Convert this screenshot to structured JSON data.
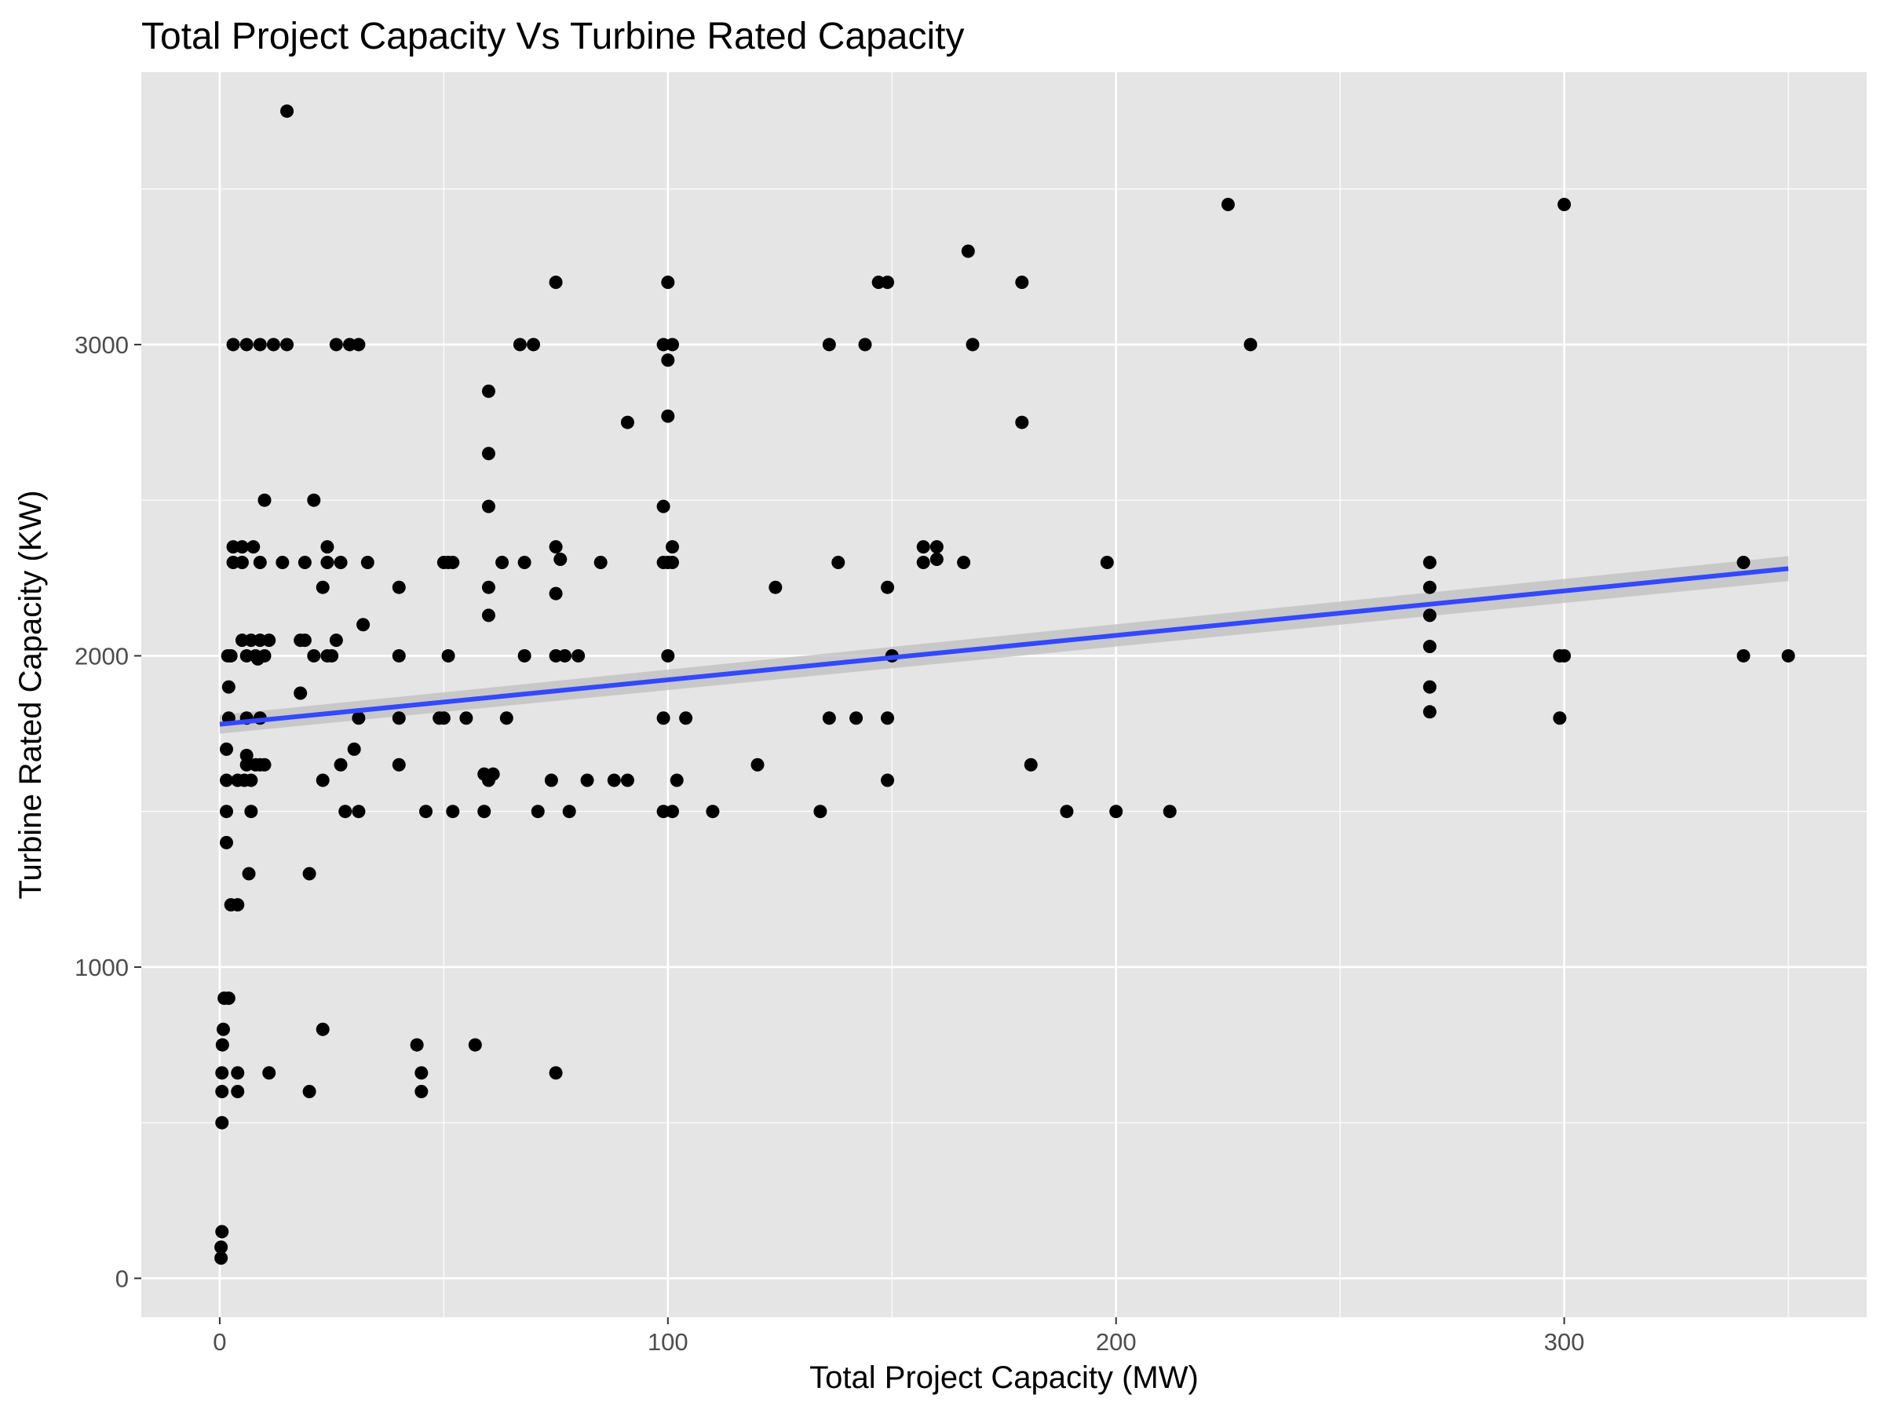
{
  "chart_data": {
    "type": "scatter",
    "title": "Total Project Capacity Vs Turbine Rated Capacity",
    "xlabel": "Total Project Capacity (MW)",
    "ylabel": "Turbine Rated Capacity (KW)",
    "xlim": [
      -17.5,
      367.5
    ],
    "ylim": [
      -125,
      3875
    ],
    "x_ticks": [
      0,
      100,
      200,
      300
    ],
    "y_ticks": [
      0,
      1000,
      2000,
      3000
    ],
    "x_tick_labels": [
      "0",
      "100",
      "200",
      "300"
    ],
    "y_tick_labels": [
      "0",
      "1000",
      "2000",
      "3000"
    ],
    "grid": true,
    "colors": {
      "panel": "#e5e5e5",
      "grid": "#ffffff",
      "points": "#000000",
      "line": "#3348ff",
      "band": "#bdbdbd",
      "tick_text": "#4d4d4d",
      "tick_mark": "#333333"
    },
    "trend_line": {
      "method": "linear fit with confidence band",
      "x": [
        0,
        350
      ],
      "y": [
        1780,
        2280
      ],
      "band_halfwidth": [
        30,
        40
      ]
    },
    "points": [
      [
        0.3,
        65
      ],
      [
        0.3,
        100
      ],
      [
        0.5,
        150
      ],
      [
        0.5,
        500
      ],
      [
        0.5,
        600
      ],
      [
        0.5,
        660
      ],
      [
        0.6,
        750
      ],
      [
        0.8,
        800
      ],
      [
        1,
        900
      ],
      [
        2,
        900
      ],
      [
        1.5,
        1400
      ],
      [
        1.5,
        1500
      ],
      [
        1.5,
        1600
      ],
      [
        1.5,
        1700
      ],
      [
        2,
        1800
      ],
      [
        2,
        1900
      ],
      [
        1.8,
        2000
      ],
      [
        2.5,
        2000
      ],
      [
        2.5,
        1200
      ],
      [
        3,
        2300
      ],
      [
        3,
        2350
      ],
      [
        3,
        3000
      ],
      [
        4,
        1200
      ],
      [
        4,
        600
      ],
      [
        4,
        660
      ],
      [
        4,
        1600
      ],
      [
        5,
        2050
      ],
      [
        5,
        2300
      ],
      [
        5,
        2350
      ],
      [
        5.5,
        1600
      ],
      [
        6,
        1650
      ],
      [
        6,
        1680
      ],
      [
        6,
        1800
      ],
      [
        6,
        2000
      ],
      [
        6,
        3000
      ],
      [
        7,
        1500
      ],
      [
        7,
        1600
      ],
      [
        6.5,
        1300
      ],
      [
        7,
        2050
      ],
      [
        7.5,
        2350
      ],
      [
        8,
        2000
      ],
      [
        8,
        1650
      ],
      [
        8.5,
        1990
      ],
      [
        9,
        2050
      ],
      [
        9,
        1650
      ],
      [
        9,
        1800
      ],
      [
        9,
        2300
      ],
      [
        9,
        3000
      ],
      [
        10,
        2000
      ],
      [
        10,
        2500
      ],
      [
        10,
        1650
      ],
      [
        11,
        2050
      ],
      [
        11,
        660
      ],
      [
        12,
        3000
      ],
      [
        14,
        2300
      ],
      [
        15,
        3000
      ],
      [
        15,
        3750
      ],
      [
        18,
        1880
      ],
      [
        18,
        2050
      ],
      [
        19,
        2300
      ],
      [
        19,
        2050
      ],
      [
        20,
        1300
      ],
      [
        20,
        600
      ],
      [
        21,
        2000
      ],
      [
        21,
        2500
      ],
      [
        23,
        1600
      ],
      [
        23,
        800
      ],
      [
        23,
        2220
      ],
      [
        24,
        2300
      ],
      [
        24,
        2350
      ],
      [
        24,
        2000
      ],
      [
        25,
        2000
      ],
      [
        26,
        3000
      ],
      [
        26,
        2050
      ],
      [
        27,
        2300
      ],
      [
        27,
        1650
      ],
      [
        28,
        1500
      ],
      [
        29,
        3000
      ],
      [
        30,
        1700
      ],
      [
        31,
        1500
      ],
      [
        31,
        3000
      ],
      [
        31,
        1800
      ],
      [
        32,
        2100
      ],
      [
        33,
        2300
      ],
      [
        40,
        2000
      ],
      [
        40,
        1800
      ],
      [
        40,
        2220
      ],
      [
        40,
        1650
      ],
      [
        44,
        750
      ],
      [
        45,
        660
      ],
      [
        45,
        600
      ],
      [
        46,
        1500
      ],
      [
        49,
        1800
      ],
      [
        50,
        1800
      ],
      [
        50,
        2300
      ],
      [
        51,
        2300
      ],
      [
        51,
        2000
      ],
      [
        52,
        1500
      ],
      [
        52,
        2300
      ],
      [
        55,
        1800
      ],
      [
        57,
        750
      ],
      [
        59,
        1500
      ],
      [
        59,
        1620
      ],
      [
        60,
        1600
      ],
      [
        60,
        2650
      ],
      [
        60,
        2850
      ],
      [
        60,
        2480
      ],
      [
        60,
        2220
      ],
      [
        60,
        2130
      ],
      [
        61,
        1620
      ],
      [
        63,
        2300
      ],
      [
        64,
        1800
      ],
      [
        67,
        3000
      ],
      [
        68,
        2000
      ],
      [
        68,
        2300
      ],
      [
        70,
        3000
      ],
      [
        71,
        1500
      ],
      [
        74,
        1600
      ],
      [
        75,
        2000
      ],
      [
        75,
        3200
      ],
      [
        75,
        2200
      ],
      [
        75,
        2350
      ],
      [
        75,
        660
      ],
      [
        76,
        2310
      ],
      [
        77,
        2000
      ],
      [
        78,
        1500
      ],
      [
        80,
        2000
      ],
      [
        82,
        1600
      ],
      [
        85,
        2300
      ],
      [
        88,
        1600
      ],
      [
        91,
        1600
      ],
      [
        91,
        2750
      ],
      [
        99,
        1800
      ],
      [
        99,
        1500
      ],
      [
        99,
        2300
      ],
      [
        99,
        3000
      ],
      [
        99,
        2480
      ],
      [
        100,
        2000
      ],
      [
        100,
        2950
      ],
      [
        100,
        2770
      ],
      [
        100,
        3200
      ],
      [
        100,
        2300
      ],
      [
        101,
        1500
      ],
      [
        101,
        2350
      ],
      [
        101,
        3000
      ],
      [
        101,
        2300
      ],
      [
        102,
        1600
      ],
      [
        104,
        1800
      ],
      [
        110,
        1500
      ],
      [
        120,
        1650
      ],
      [
        124,
        2220
      ],
      [
        134,
        1500
      ],
      [
        136,
        1800
      ],
      [
        136,
        3000
      ],
      [
        138,
        2300
      ],
      [
        142,
        1800
      ],
      [
        144,
        3000
      ],
      [
        147,
        3200
      ],
      [
        149,
        3200
      ],
      [
        149,
        2220
      ],
      [
        149,
        1600
      ],
      [
        149,
        1800
      ],
      [
        150,
        2000
      ],
      [
        157,
        2300
      ],
      [
        157,
        2350
      ],
      [
        160,
        2350
      ],
      [
        160,
        2310
      ],
      [
        166,
        2300
      ],
      [
        167,
        3300
      ],
      [
        168,
        3000
      ],
      [
        179,
        3200
      ],
      [
        179,
        2750
      ],
      [
        181,
        1650
      ],
      [
        189,
        1500
      ],
      [
        198,
        2300
      ],
      [
        200,
        1500
      ],
      [
        212,
        1500
      ],
      [
        225,
        3450
      ],
      [
        230,
        3000
      ],
      [
        270,
        2300
      ],
      [
        270,
        2220
      ],
      [
        270,
        2130
      ],
      [
        270,
        2030
      ],
      [
        270,
        1900
      ],
      [
        270,
        1820
      ],
      [
        299,
        1800
      ],
      [
        299,
        2000
      ],
      [
        300,
        2000
      ],
      [
        300,
        3450
      ],
      [
        340,
        2300
      ],
      [
        340,
        2000
      ],
      [
        350,
        2000
      ]
    ]
  }
}
